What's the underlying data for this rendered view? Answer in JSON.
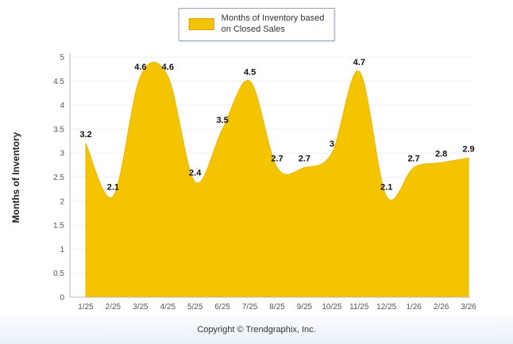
{
  "legend": {
    "line1": "Months of Inventory based",
    "line2": "on Closed Sales",
    "swatch_color": "#F5C400"
  },
  "footer": {
    "copyright": "Copyright © Trendgraphix, Inc."
  },
  "colors": {
    "area_fill": "#F5C400",
    "area_stroke": "#E8B700",
    "axis_line": "#b9b9b9",
    "gridline": "#f0f0f0",
    "tick_text": "#555555",
    "point_label_text": "#111111"
  },
  "chart_data": {
    "type": "area",
    "smooth": true,
    "series_name": "Months of Inventory based on Closed Sales",
    "categories": [
      "1/25",
      "2/25",
      "3/25",
      "4/25",
      "5/25",
      "6/25",
      "7/25",
      "8/25",
      "9/25",
      "10/25",
      "11/25",
      "12/25",
      "1/26",
      "2/26",
      "3/26"
    ],
    "values": [
      3.2,
      2.1,
      4.6,
      4.6,
      2.4,
      3.5,
      4.5,
      2.7,
      2.7,
      3,
      4.7,
      2.1,
      2.7,
      2.8,
      2.9
    ],
    "point_labels": [
      "3.2",
      "2.1",
      "4.6",
      "4.6",
      "2.4",
      "3.5",
      "4.5",
      "2.7",
      "2.7",
      "3",
      "4.7",
      "2.1",
      "2.7",
      "2.8",
      "2.9"
    ],
    "title": "",
    "xlabel": "",
    "ylabel": "Months of Inventory",
    "ylim": [
      0,
      5
    ],
    "ytick_step": 0.5,
    "grid": false,
    "legend_position": "top-center"
  }
}
